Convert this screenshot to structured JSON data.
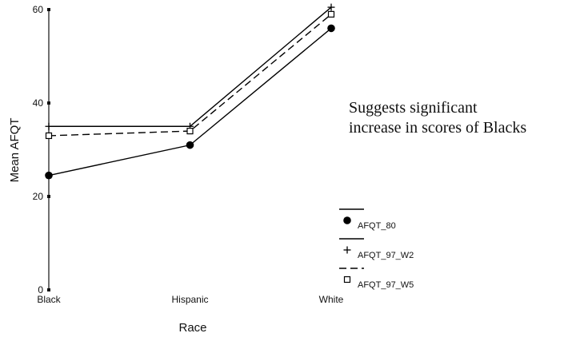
{
  "chart_data": {
    "type": "line",
    "title": "",
    "xlabel": "Race",
    "ylabel": "Mean AFQT",
    "categories": [
      "Black",
      "Hispanic",
      "White"
    ],
    "ylim": [
      0,
      60
    ],
    "yticks": [
      "0",
      "20",
      "40",
      "60"
    ],
    "grid": false,
    "legend_position": "right",
    "series": [
      {
        "name": "AFQT_80",
        "values": [
          24.5,
          31,
          56
        ],
        "marker": "filled-circle",
        "line_style": "solid",
        "color": "#000000"
      },
      {
        "name": "AFQT_97_W2",
        "values": [
          35,
          35,
          60.5
        ],
        "marker": "plus",
        "line_style": "solid",
        "color": "#000000"
      },
      {
        "name": "AFQT_97_W5",
        "values": [
          33,
          34,
          59
        ],
        "marker": "open-square",
        "line_style": "dashed",
        "color": "#000000"
      }
    ]
  },
  "annotation": {
    "line1": "Suggests significant",
    "line2": "increase in scores of Blacks"
  }
}
